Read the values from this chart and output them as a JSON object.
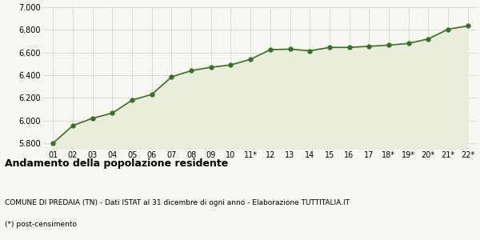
{
  "x_labels": [
    "01",
    "02",
    "03",
    "04",
    "05",
    "06",
    "07",
    "08",
    "09",
    "10",
    "11*",
    "12",
    "13",
    "14",
    "15",
    "16",
    "17",
    "18*",
    "19*",
    "20*",
    "21*",
    "22*"
  ],
  "values": [
    5800,
    5955,
    6020,
    6065,
    6180,
    6230,
    6385,
    6440,
    6470,
    6490,
    6540,
    6625,
    6630,
    6615,
    6645,
    6645,
    6655,
    6665,
    6680,
    6720,
    6805,
    6835
  ],
  "line_color": "#3a6e28",
  "fill_color": "#e8eddc",
  "marker_color": "#3a6e28",
  "bg_color": "#f7f7f2",
  "grid_color": "#d0d0c8",
  "ylim": [
    5750,
    7000
  ],
  "yticks": [
    5800,
    6000,
    6200,
    6400,
    6600,
    6800,
    7000
  ],
  "title": "Andamento della popolazione residente",
  "subtitle": "COMUNE DI PREDAIA (TN) - Dati ISTAT al 31 dicembre di ogni anno - Elaborazione TUTTITALIA.IT",
  "footnote": "(*) post-censimento",
  "title_fontsize": 9,
  "subtitle_fontsize": 6.5,
  "footnote_fontsize": 6.5,
  "tick_fontsize": 7,
  "ytick_fontsize": 7
}
